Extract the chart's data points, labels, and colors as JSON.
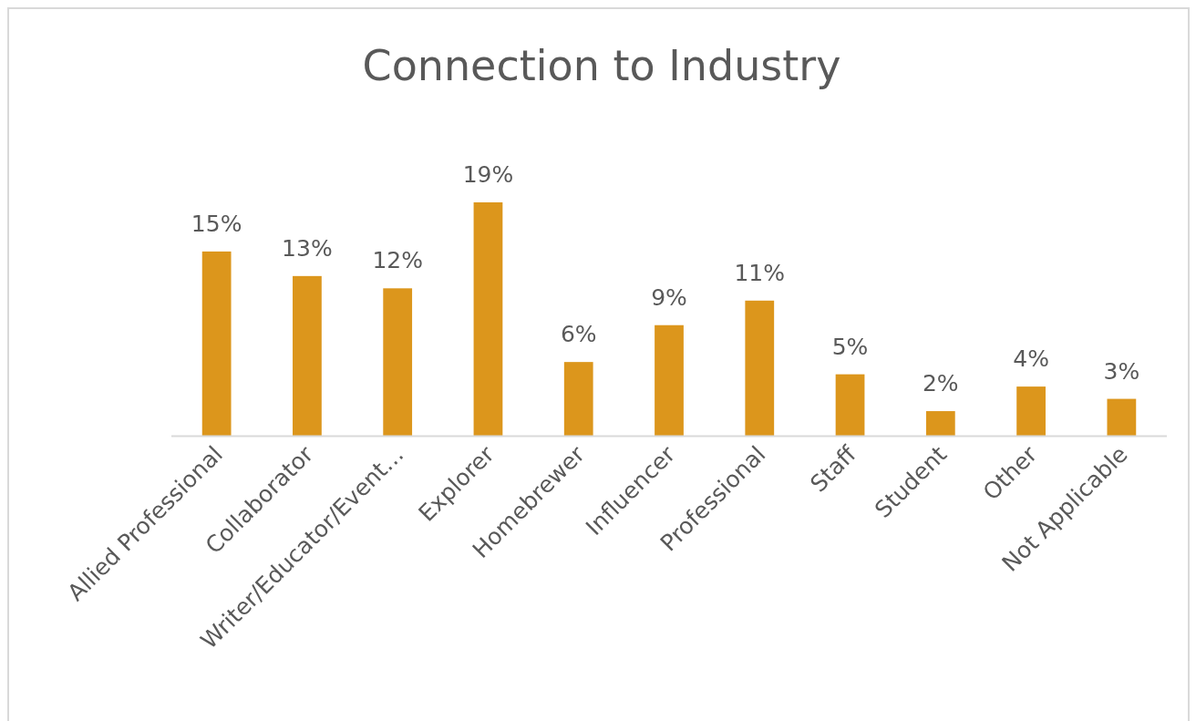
{
  "chart_data": {
    "type": "bar",
    "title": "Connection to Industry",
    "categories": [
      "Allied Professional",
      "Collaborator",
      "Writer/Educator/Event…",
      "Explorer",
      "Homebrewer",
      "Influencer",
      "Professional",
      "Staff",
      "Student",
      "Other",
      "Not Applicable"
    ],
    "values": [
      15,
      13,
      12,
      19,
      6,
      9,
      11,
      5,
      2,
      4,
      3
    ],
    "value_labels": [
      "15%",
      "13%",
      "12%",
      "19%",
      "6%",
      "9%",
      "11%",
      "5%",
      "2%",
      "4%",
      "3%"
    ],
    "color": "#dc961c"
  }
}
